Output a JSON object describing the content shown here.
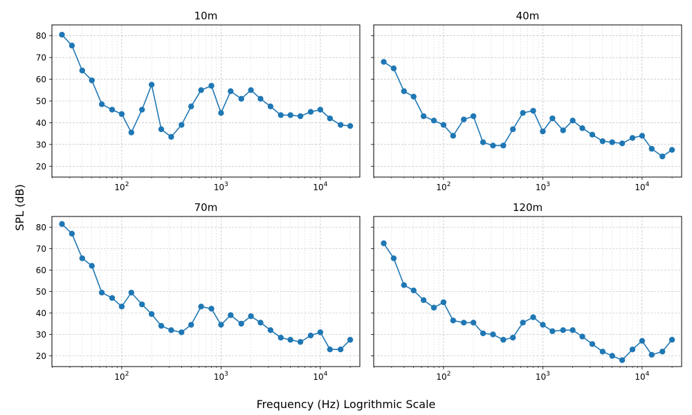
{
  "figure": {
    "ylabel": "SPL (dB)",
    "xlabel": "Frequency (Hz) Logrithmic Scale"
  },
  "colors": {
    "line": "#1f77b4",
    "grid": "#b0b0b0",
    "axis": "#000000"
  },
  "chart_data": [
    {
      "type": "line",
      "title": "10m",
      "xscale": "log",
      "grid": true,
      "xlim": [
        19.8,
        25000
      ],
      "ylim": [
        15,
        85
      ],
      "yticks": [
        20,
        30,
        40,
        50,
        60,
        70,
        80
      ],
      "xticks": [
        100,
        1000,
        10000
      ],
      "xtick_labels": [
        "10^2",
        "10^3",
        "10^4"
      ],
      "x": [
        25,
        31.5,
        40,
        50,
        63,
        80,
        100,
        125,
        160,
        200,
        250,
        315,
        400,
        500,
        630,
        800,
        1000,
        1250,
        1600,
        2000,
        2500,
        3150,
        4000,
        5000,
        6300,
        8000,
        10000,
        12500,
        16000,
        20000
      ],
      "y": [
        80.5,
        75.5,
        64,
        59.5,
        48.5,
        46,
        44,
        35.5,
        46,
        57.5,
        37,
        33.5,
        39,
        47.5,
        55,
        57,
        44.5,
        54.5,
        51,
        55,
        51,
        47.5,
        43.5,
        43.5,
        43,
        45,
        46,
        42,
        39,
        38.5
      ]
    },
    {
      "type": "line",
      "title": "40m",
      "xscale": "log",
      "grid": true,
      "xlim": [
        19.8,
        25000
      ],
      "ylim": [
        15,
        85
      ],
      "yticks": [
        20,
        30,
        40,
        50,
        60,
        70,
        80
      ],
      "xticks": [
        100,
        1000,
        10000
      ],
      "xtick_labels": [
        "10^2",
        "10^3",
        "10^4"
      ],
      "x": [
        25,
        31.5,
        40,
        50,
        63,
        80,
        100,
        125,
        160,
        200,
        250,
        315,
        400,
        500,
        630,
        800,
        1000,
        1250,
        1600,
        2000,
        2500,
        3150,
        4000,
        5000,
        6300,
        8000,
        10000,
        12500,
        16000,
        20000
      ],
      "y": [
        68,
        65,
        54.5,
        52,
        43,
        41,
        39,
        34,
        41.5,
        43,
        31,
        29.5,
        29.5,
        37,
        44.5,
        45.5,
        36,
        42,
        36.5,
        41,
        37.5,
        34.5,
        31.5,
        31,
        30.5,
        33,
        34,
        28,
        24.5,
        27.5
      ]
    },
    {
      "type": "line",
      "title": "70m",
      "xscale": "log",
      "grid": true,
      "xlim": [
        19.8,
        25000
      ],
      "ylim": [
        15,
        85
      ],
      "yticks": [
        20,
        30,
        40,
        50,
        60,
        70,
        80
      ],
      "xticks": [
        100,
        1000,
        10000
      ],
      "xtick_labels": [
        "10^2",
        "10^3",
        "10^4"
      ],
      "x": [
        25,
        31.5,
        40,
        50,
        63,
        80,
        100,
        125,
        160,
        200,
        250,
        315,
        400,
        500,
        630,
        800,
        1000,
        1250,
        1600,
        2000,
        2500,
        3150,
        4000,
        5000,
        6300,
        8000,
        10000,
        12500,
        16000,
        20000
      ],
      "y": [
        81.5,
        77,
        65.5,
        62,
        49.5,
        47,
        43,
        49.5,
        44,
        39.5,
        34,
        32,
        31,
        34.5,
        43,
        42,
        34.5,
        39,
        35,
        38.5,
        35.5,
        32,
        28.5,
        27.5,
        26.5,
        29.5,
        31,
        23,
        23,
        27.5
      ]
    },
    {
      "type": "line",
      "title": "120m",
      "xscale": "log",
      "grid": true,
      "xlim": [
        19.8,
        25000
      ],
      "ylim": [
        15,
        85
      ],
      "yticks": [
        20,
        30,
        40,
        50,
        60,
        70,
        80
      ],
      "xticks": [
        100,
        1000,
        10000
      ],
      "xtick_labels": [
        "10^2",
        "10^3",
        "10^4"
      ],
      "x": [
        25,
        31.5,
        40,
        50,
        63,
        80,
        100,
        125,
        160,
        200,
        250,
        315,
        400,
        500,
        630,
        800,
        1000,
        1250,
        1600,
        2000,
        2500,
        3150,
        4000,
        5000,
        6300,
        8000,
        10000,
        12500,
        16000,
        20000
      ],
      "y": [
        72.5,
        65.5,
        53,
        50.5,
        46,
        42.5,
        45,
        36.5,
        35.5,
        35.5,
        30.5,
        30,
        27.5,
        28.5,
        35.5,
        38,
        34.5,
        31.5,
        32,
        32,
        29,
        25.5,
        22,
        20,
        18,
        23,
        27,
        20.5,
        22,
        27.5
      ]
    }
  ]
}
